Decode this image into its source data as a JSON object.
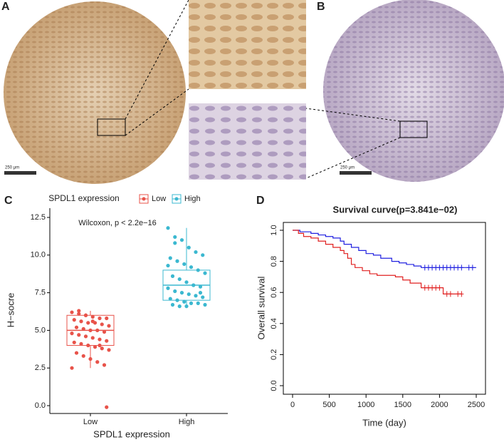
{
  "panels": {
    "a": "A",
    "b": "B",
    "c": "C",
    "d": "D",
    "scale_a": "250 μm",
    "scale_b": "250 μm"
  },
  "chart_data": [
    {
      "type": "box",
      "legend_title": "SPDL1 expression",
      "annotation": "Wilcoxon, p < 2.2e−16",
      "x_label": "SPDL1 expression",
      "y_label": "H−socre",
      "categories": [
        "Low",
        "High"
      ],
      "ylim": [
        0,
        12.5
      ],
      "yticks": [
        {
          "value": 0,
          "label": "0.0"
        },
        2.5,
        {
          "value": 5,
          "label": "5.0"
        },
        7.5,
        {
          "value": 10,
          "label": "10.0"
        },
        12.5
      ],
      "series": [
        {
          "name": "Low",
          "color": "#e8534a",
          "q1": 4.0,
          "median": 5.0,
          "q3": 6.0,
          "whisker_low": 2.5,
          "whisker_high": 6.3,
          "points": [
            6.2,
            6.1,
            6.0,
            5.9,
            5.8,
            5.8,
            5.7,
            5.6,
            5.5,
            5.5,
            5.4,
            5.3,
            5.2,
            5.1,
            5.0,
            5.0,
            4.9,
            4.8,
            4.7,
            4.6,
            4.5,
            4.4,
            4.3,
            4.2,
            4.1,
            4.0,
            3.9,
            3.8,
            3.7,
            3.5,
            3.3,
            3.1,
            2.9,
            2.7,
            2.5,
            6.3,
            6.0,
            5.6,
            4.0,
            -0.1
          ]
        },
        {
          "name": "High",
          "color": "#3bb8d0",
          "q1": 7.0,
          "median": 8.0,
          "q3": 9.0,
          "whisker_low": 6.6,
          "whisker_high": 11.8,
          "points": [
            11.8,
            11.2,
            11.0,
            10.5,
            10.2,
            10.0,
            9.8,
            9.6,
            9.4,
            9.2,
            9.0,
            8.8,
            8.6,
            8.4,
            8.2,
            8.0,
            7.9,
            7.8,
            7.6,
            7.5,
            7.4,
            7.3,
            7.2,
            7.1,
            7.0,
            6.9,
            6.8,
            6.8,
            6.7,
            6.7,
            6.6,
            6.6,
            8.0,
            7.5,
            9.3,
            10.8
          ]
        }
      ]
    },
    {
      "type": "step",
      "title": "Survival curve(p=3.841e−02)",
      "x_label": "Time (day)",
      "y_label": "Overall survival",
      "xlim": [
        0,
        2500
      ],
      "ylim": [
        0,
        1
      ],
      "xticks": [
        0,
        500,
        1000,
        1500,
        2000,
        2500
      ],
      "yticks": [
        {
          "value": 0,
          "label": "0.0"
        },
        0.2,
        0.4,
        0.6,
        0.8,
        {
          "value": 1,
          "label": "1.0"
        }
      ],
      "series": [
        {
          "color": "#2020e0",
          "x": [
            0,
            100,
            250,
            350,
            450,
            550,
            650,
            700,
            800,
            900,
            1000,
            1100,
            1200,
            1350,
            1450,
            1550,
            1650,
            1750,
            2500
          ],
          "values": [
            1,
            0.99,
            0.98,
            0.97,
            0.96,
            0.95,
            0.93,
            0.91,
            0.89,
            0.87,
            0.85,
            0.84,
            0.82,
            0.8,
            0.79,
            0.78,
            0.77,
            0.76,
            0.76
          ],
          "censored": {
            "x": [
              1800,
              1850,
              1900,
              1950,
              2000,
              2050,
              2100,
              2150,
              2200,
              2250,
              2300,
              2400,
              2450
            ],
            "values": [
              0.76,
              0.76,
              0.76,
              0.76,
              0.76,
              0.76,
              0.76,
              0.76,
              0.76,
              0.76,
              0.76,
              0.76,
              0.76
            ]
          }
        },
        {
          "color": "#e02020",
          "x": [
            0,
            80,
            150,
            250,
            350,
            450,
            550,
            650,
            700,
            750,
            800,
            850,
            950,
            1050,
            1150,
            1400,
            1500,
            1600,
            1750,
            2050,
            2300
          ],
          "values": [
            1,
            0.98,
            0.96,
            0.95,
            0.93,
            0.91,
            0.89,
            0.87,
            0.85,
            0.82,
            0.78,
            0.76,
            0.74,
            0.72,
            0.71,
            0.7,
            0.68,
            0.66,
            0.63,
            0.59,
            0.59
          ],
          "censored": {
            "x": [
              1800,
              1850,
              1900,
              1950,
              2000,
              2100,
              2150,
              2250,
              2300
            ],
            "values": [
              0.63,
              0.63,
              0.63,
              0.63,
              0.63,
              0.59,
              0.59,
              0.59,
              0.59
            ]
          }
        }
      ]
    }
  ]
}
